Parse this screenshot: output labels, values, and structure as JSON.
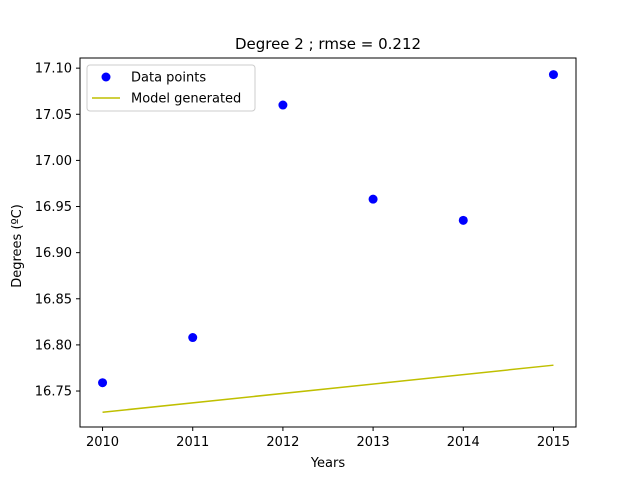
{
  "chart_data": {
    "type": "scatter",
    "title": "Degree 2 ; rmse = 0.212",
    "xlabel": "Years",
    "ylabel": "Degrees (ºC)",
    "xlim": [
      2009.75,
      2015.25
    ],
    "ylim": [
      16.711,
      17.111
    ],
    "xticks": [
      2010,
      2011,
      2012,
      2013,
      2014,
      2015
    ],
    "xtick_labels": [
      "2010",
      "2011",
      "2012",
      "2013",
      "2014",
      "2015"
    ],
    "yticks": [
      16.75,
      16.8,
      16.85,
      16.9,
      16.95,
      17.0,
      17.05,
      17.1
    ],
    "ytick_labels": [
      "16.75",
      "16.80",
      "16.85",
      "16.90",
      "16.95",
      "17.00",
      "17.05",
      "17.10"
    ],
    "legend_position": "top-left",
    "grid": false,
    "series": [
      {
        "name": "Data points",
        "kind": "scatter",
        "color": "#0000ff",
        "x": [
          2010,
          2011,
          2012,
          2013,
          2014,
          2015
        ],
        "y": [
          16.759,
          16.808,
          17.06,
          16.958,
          16.935,
          17.093
        ]
      },
      {
        "name": "Model generated",
        "kind": "line",
        "color": "#bfbf00",
        "x": [
          2010,
          2015
        ],
        "y": [
          16.727,
          16.778
        ]
      }
    ]
  }
}
